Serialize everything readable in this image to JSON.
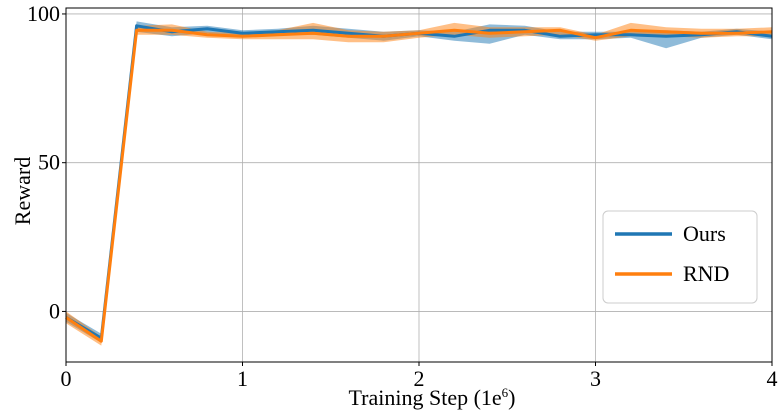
{
  "chart_data": {
    "type": "line",
    "xlabel": "Training Step (1e",
    "xlabel_exponent": "6",
    "xlabel_close": ")",
    "ylabel": "Reward",
    "xlim": [
      0,
      4
    ],
    "ylim": [
      -17,
      102
    ],
    "xticks": [
      0,
      1,
      2,
      3,
      4
    ],
    "yticks": [
      0,
      50,
      100
    ],
    "xtick_labels": [
      "0",
      "1",
      "2",
      "3",
      "4"
    ],
    "ytick_labels": [
      "0",
      "50",
      "100"
    ],
    "grid": true,
    "legend_position": "center-right",
    "x": [
      0,
      0.2,
      0.4,
      0.6,
      0.8,
      1.0,
      1.2,
      1.4,
      1.6,
      1.8,
      2.0,
      2.2,
      2.4,
      2.6,
      2.8,
      3.0,
      3.2,
      3.4,
      3.6,
      3.8,
      4.0
    ],
    "series": [
      {
        "name": "Ours",
        "color": "#1f77b4",
        "values": [
          -2,
          -9,
          96,
          94,
          95,
          93.5,
          94,
          94.5,
          93.5,
          92.5,
          93.5,
          92.5,
          94.5,
          94.5,
          92.5,
          93,
          93,
          92.5,
          93,
          94,
          92.5
        ],
        "lower": [
          -3.5,
          -10.5,
          94,
          92.5,
          93.5,
          92.5,
          93,
          93,
          92,
          91,
          92.5,
          91,
          90,
          93,
          91.5,
          91.5,
          92,
          88.5,
          92,
          93,
          91.5
        ],
        "upper": [
          -0.5,
          -7.5,
          97.5,
          95.5,
          96,
          94.5,
          95,
          96,
          95,
          94,
          94.5,
          94,
          96.5,
          96,
          94,
          94,
          94,
          94.5,
          94,
          95,
          94
        ]
      },
      {
        "name": "RND",
        "color": "#ff7f0e",
        "values": [
          -2,
          -10,
          94.5,
          94.5,
          93,
          92.5,
          93,
          93.5,
          92.5,
          92.5,
          93.5,
          94.5,
          93.5,
          94,
          94.5,
          92,
          94.5,
          94,
          93.5,
          93.5,
          94
        ],
        "lower": [
          -4,
          -11.5,
          93,
          93,
          92,
          91.5,
          91.5,
          91.5,
          90.5,
          90.5,
          92,
          93,
          92,
          92.5,
          93,
          91,
          92.5,
          92.5,
          92,
          92.5,
          92.5
        ],
        "upper": [
          0,
          -8.5,
          96,
          96.5,
          94,
          93.5,
          94.5,
          97,
          94.5,
          94,
          94.5,
          97,
          95.5,
          95.5,
          95.5,
          93,
          97,
          95.5,
          95,
          95,
          95.5
        ]
      }
    ]
  }
}
